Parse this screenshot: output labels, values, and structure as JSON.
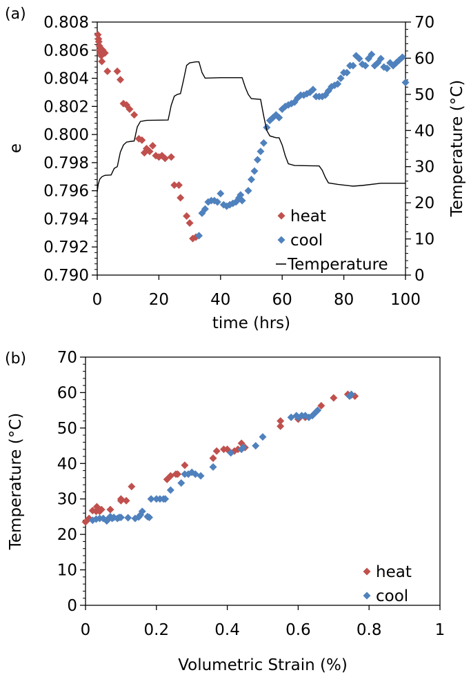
{
  "panels": [
    {
      "label": "(a)",
      "type": "scatter",
      "x": {
        "label": "time (hrs)",
        "lim": [
          0,
          100
        ],
        "ticks": [
          0,
          20,
          40,
          60,
          80,
          100
        ]
      },
      "y": {
        "label": "e",
        "lim": [
          0.79,
          0.808
        ],
        "ticks": [
          0.79,
          0.792,
          0.794,
          0.796,
          0.798,
          0.8,
          0.802,
          0.804,
          0.806,
          0.808
        ],
        "tick_labels": [
          "0.790",
          "0.792",
          "0.794",
          "0.796",
          "0.798",
          "0.800",
          "0.802",
          "0.804",
          "0.806",
          "0.808"
        ]
      },
      "y2": {
        "label": "Temperature (°C)",
        "lim": [
          0,
          70
        ],
        "ticks": [
          0,
          10,
          20,
          30,
          40,
          50,
          60,
          70
        ]
      },
      "legend": {
        "position": "bottom-right",
        "entries": [
          "heat",
          "cool",
          "Temperature"
        ]
      },
      "series": [
        {
          "name": "heat",
          "marker": "diamond",
          "color": "#c0504d",
          "points": [
            [
              0.2,
              0.8071
            ],
            [
              0.4,
              0.8068
            ],
            [
              0.5,
              0.8066
            ],
            [
              0.7,
              0.8063
            ],
            [
              0.8,
              0.806
            ],
            [
              1.0,
              0.8058
            ],
            [
              1.2,
              0.8061
            ],
            [
              1.3,
              0.8056
            ],
            [
              1.5,
              0.8052
            ],
            [
              1.8,
              0.806
            ],
            [
              2.5,
              0.8058
            ],
            [
              3.3,
              0.8045
            ],
            [
              6.5,
              0.8045
            ],
            [
              7.5,
              0.8039
            ],
            [
              8.5,
              0.8022
            ],
            [
              9.5,
              0.8021
            ],
            [
              10.5,
              0.8018
            ],
            [
              12.0,
              0.8014
            ],
            [
              13.5,
              0.7997
            ],
            [
              14.5,
              0.7996
            ],
            [
              15.3,
              0.7987
            ],
            [
              16.0,
              0.799
            ],
            [
              17.0,
              0.7988
            ],
            [
              18.0,
              0.7992
            ],
            [
              19.0,
              0.7985
            ],
            [
              20.0,
              0.7984
            ],
            [
              21.0,
              0.7985
            ],
            [
              22.0,
              0.7983
            ],
            [
              24.0,
              0.7984
            ],
            [
              25.0,
              0.7964
            ],
            [
              26.5,
              0.7964
            ],
            [
              27.0,
              0.7955
            ],
            [
              29.0,
              0.7942
            ],
            [
              30.0,
              0.7937
            ],
            [
              31.0,
              0.7926
            ],
            [
              32.0,
              0.7927
            ]
          ]
        },
        {
          "name": "cool",
          "marker": "diamond",
          "color": "#4f81bd",
          "points": [
            [
              33,
              0.7928
            ],
            [
              34,
              0.7944
            ],
            [
              35,
              0.7947
            ],
            [
              36,
              0.7952
            ],
            [
              37,
              0.7953
            ],
            [
              38,
              0.7953
            ],
            [
              39,
              0.7952
            ],
            [
              40,
              0.7958
            ],
            [
              41,
              0.795
            ],
            [
              42,
              0.7949
            ],
            [
              43,
              0.795
            ],
            [
              44,
              0.7951
            ],
            [
              45,
              0.7952
            ],
            [
              46,
              0.7955
            ],
            [
              46.5,
              0.7957
            ],
            [
              47,
              0.7953
            ],
            [
              49,
              0.796
            ],
            [
              50,
              0.7968
            ],
            [
              51,
              0.7974
            ],
            [
              52,
              0.7982
            ],
            [
              53,
              0.7988
            ],
            [
              54,
              0.7994
            ],
            [
              55,
              0.8005
            ],
            [
              56,
              0.801
            ],
            [
              57,
              0.8012
            ],
            [
              58,
              0.8014
            ],
            [
              59,
              0.8012
            ],
            [
              60,
              0.8018
            ],
            [
              61,
              0.802
            ],
            [
              62,
              0.8021
            ],
            [
              63,
              0.8022
            ],
            [
              64,
              0.8023
            ],
            [
              65,
              0.8026
            ],
            [
              66,
              0.8028
            ],
            [
              67,
              0.8028
            ],
            [
              68,
              0.8029
            ],
            [
              69,
              0.803
            ],
            [
              70,
              0.8032
            ],
            [
              71,
              0.8027
            ],
            [
              72,
              0.8027
            ],
            [
              73,
              0.8027
            ],
            [
              74,
              0.8028
            ],
            [
              75,
              0.8031
            ],
            [
              76,
              0.8034
            ],
            [
              77,
              0.8035
            ],
            [
              78,
              0.8036
            ],
            [
              79,
              0.804
            ],
            [
              80,
              0.8044
            ],
            [
              81,
              0.8044
            ],
            [
              82,
              0.8049
            ],
            [
              83,
              0.8049
            ],
            [
              84,
              0.8056
            ],
            [
              85,
              0.8054
            ],
            [
              86,
              0.805
            ],
            [
              87,
              0.8049
            ],
            [
              88,
              0.8054
            ],
            [
              89,
              0.8057
            ],
            [
              90,
              0.8049
            ],
            [
              91,
              0.8051
            ],
            [
              92,
              0.8054
            ],
            [
              93,
              0.8048
            ],
            [
              94,
              0.8047
            ],
            [
              95,
              0.8051
            ],
            [
              96,
              0.8049
            ],
            [
              97,
              0.8051
            ],
            [
              98,
              0.8053
            ],
            [
              99,
              0.8055
            ],
            [
              100,
              0.8037
            ]
          ]
        },
        {
          "name": "Temperature",
          "type": "line",
          "axis": "y2",
          "color": "#000000",
          "points": [
            [
              0,
              23
            ],
            [
              0.3,
              25
            ],
            [
              0.8,
              26.5
            ],
            [
              1.5,
              27.2
            ],
            [
              2.5,
              27.6
            ],
            [
              4.5,
              27.7
            ],
            [
              5.5,
              29.5
            ],
            [
              6.5,
              30
            ],
            [
              7.5,
              34
            ],
            [
              8.5,
              36
            ],
            [
              9.5,
              36.8
            ],
            [
              11,
              37
            ],
            [
              12,
              37.1
            ],
            [
              13,
              41
            ],
            [
              14,
              42.5
            ],
            [
              16,
              42.8
            ],
            [
              23,
              42.9
            ],
            [
              24,
              47
            ],
            [
              25,
              49.5
            ],
            [
              26,
              50
            ],
            [
              27,
              50.2
            ],
            [
              28,
              54
            ],
            [
              29,
              58
            ],
            [
              30,
              58.7
            ],
            [
              32,
              59
            ],
            [
              33,
              59
            ],
            [
              34,
              56
            ],
            [
              35,
              54.5
            ],
            [
              40,
              54.6
            ],
            [
              47,
              54.6
            ],
            [
              48,
              52
            ],
            [
              49,
              50
            ],
            [
              50,
              48.8
            ],
            [
              53,
              48.6
            ],
            [
              54,
              44
            ],
            [
              55,
              40
            ],
            [
              56,
              38.5
            ],
            [
              58,
              38
            ],
            [
              59,
              38
            ],
            [
              60,
              36
            ],
            [
              61,
              33
            ],
            [
              62,
              30.8
            ],
            [
              64,
              30.3
            ],
            [
              72,
              30.2
            ],
            [
              73,
              29
            ],
            [
              74,
              27
            ],
            [
              75,
              25.5
            ],
            [
              78,
              25.1
            ],
            [
              83,
              24.6
            ],
            [
              86,
              24.8
            ],
            [
              92,
              25.4
            ],
            [
              100,
              25.4
            ]
          ]
        }
      ]
    },
    {
      "label": "(b)",
      "type": "scatter",
      "x": {
        "label": "Volumetric Strain (%)",
        "lim": [
          0,
          1
        ],
        "ticks": [
          0,
          0.2,
          0.4,
          0.6,
          0.8,
          1
        ],
        "tick_labels": [
          "0",
          "0.2",
          "0.4",
          "0.6",
          "0.8",
          "1"
        ]
      },
      "y": {
        "label": "Temperature (°C)",
        "lim": [
          0,
          70
        ],
        "ticks": [
          0,
          10,
          20,
          30,
          40,
          50,
          60,
          70
        ]
      },
      "legend": {
        "position": "bottom-right",
        "entries": [
          "heat",
          "cool"
        ]
      },
      "series": [
        {
          "name": "heat",
          "marker": "diamond",
          "color": "#c0504d",
          "points": [
            [
              0.0,
              23.5
            ],
            [
              0.01,
              24.5
            ],
            [
              0.02,
              26.7
            ],
            [
              0.03,
              26.5
            ],
            [
              0.032,
              27.8
            ],
            [
              0.04,
              26.5
            ],
            [
              0.045,
              27
            ],
            [
              0.07,
              27
            ],
            [
              0.1,
              29.5
            ],
            [
              0.1,
              30
            ],
            [
              0.115,
              29.5
            ],
            [
              0.13,
              33.5
            ],
            [
              0.23,
              35.5
            ],
            [
              0.24,
              36.5
            ],
            [
              0.255,
              37
            ],
            [
              0.26,
              37
            ],
            [
              0.28,
              39.5
            ],
            [
              0.36,
              41.5
            ],
            [
              0.37,
              43.5
            ],
            [
              0.39,
              44
            ],
            [
              0.4,
              44
            ],
            [
              0.42,
              43.5
            ],
            [
              0.43,
              44
            ],
            [
              0.44,
              45.7
            ],
            [
              0.45,
              44.5
            ],
            [
              0.55,
              50.5
            ],
            [
              0.55,
              52
            ],
            [
              0.6,
              52.5
            ],
            [
              0.62,
              53
            ],
            [
              0.665,
              56.3
            ],
            [
              0.7,
              58.5
            ],
            [
              0.74,
              59.5
            ],
            [
              0.75,
              59.3
            ],
            [
              0.76,
              59
            ]
          ]
        },
        {
          "name": "cool",
          "marker": "diamond",
          "color": "#4f81bd",
          "points": [
            [
              0.02,
              24
            ],
            [
              0.03,
              24.3
            ],
            [
              0.04,
              24.5
            ],
            [
              0.05,
              24.5
            ],
            [
              0.06,
              23.8
            ],
            [
              0.065,
              24.5
            ],
            [
              0.07,
              25
            ],
            [
              0.075,
              24.5
            ],
            [
              0.08,
              24.8
            ],
            [
              0.09,
              24.5
            ],
            [
              0.095,
              24.8
            ],
            [
              0.1,
              24.8
            ],
            [
              0.12,
              24.7
            ],
            [
              0.14,
              24.5
            ],
            [
              0.15,
              24.9
            ],
            [
              0.155,
              25.5
            ],
            [
              0.16,
              26.5
            ],
            [
              0.175,
              25
            ],
            [
              0.18,
              24.8
            ],
            [
              0.185,
              30
            ],
            [
              0.2,
              30
            ],
            [
              0.21,
              30
            ],
            [
              0.22,
              30
            ],
            [
              0.225,
              30
            ],
            [
              0.24,
              32.5
            ],
            [
              0.27,
              34.5
            ],
            [
              0.28,
              37
            ],
            [
              0.29,
              37
            ],
            [
              0.3,
              37.5
            ],
            [
              0.31,
              37
            ],
            [
              0.325,
              36.5
            ],
            [
              0.36,
              39
            ],
            [
              0.41,
              43
            ],
            [
              0.44,
              44
            ],
            [
              0.445,
              44.5
            ],
            [
              0.48,
              45
            ],
            [
              0.5,
              47.5
            ],
            [
              0.58,
              53
            ],
            [
              0.595,
              53.5
            ],
            [
              0.6,
              53
            ],
            [
              0.61,
              53.5
            ],
            [
              0.62,
              53.5
            ],
            [
              0.63,
              53
            ],
            [
              0.64,
              53.5
            ],
            [
              0.65,
              54.5
            ],
            [
              0.655,
              55
            ],
            [
              0.745,
              59
            ],
            [
              0.75,
              59.5
            ]
          ]
        }
      ]
    }
  ]
}
